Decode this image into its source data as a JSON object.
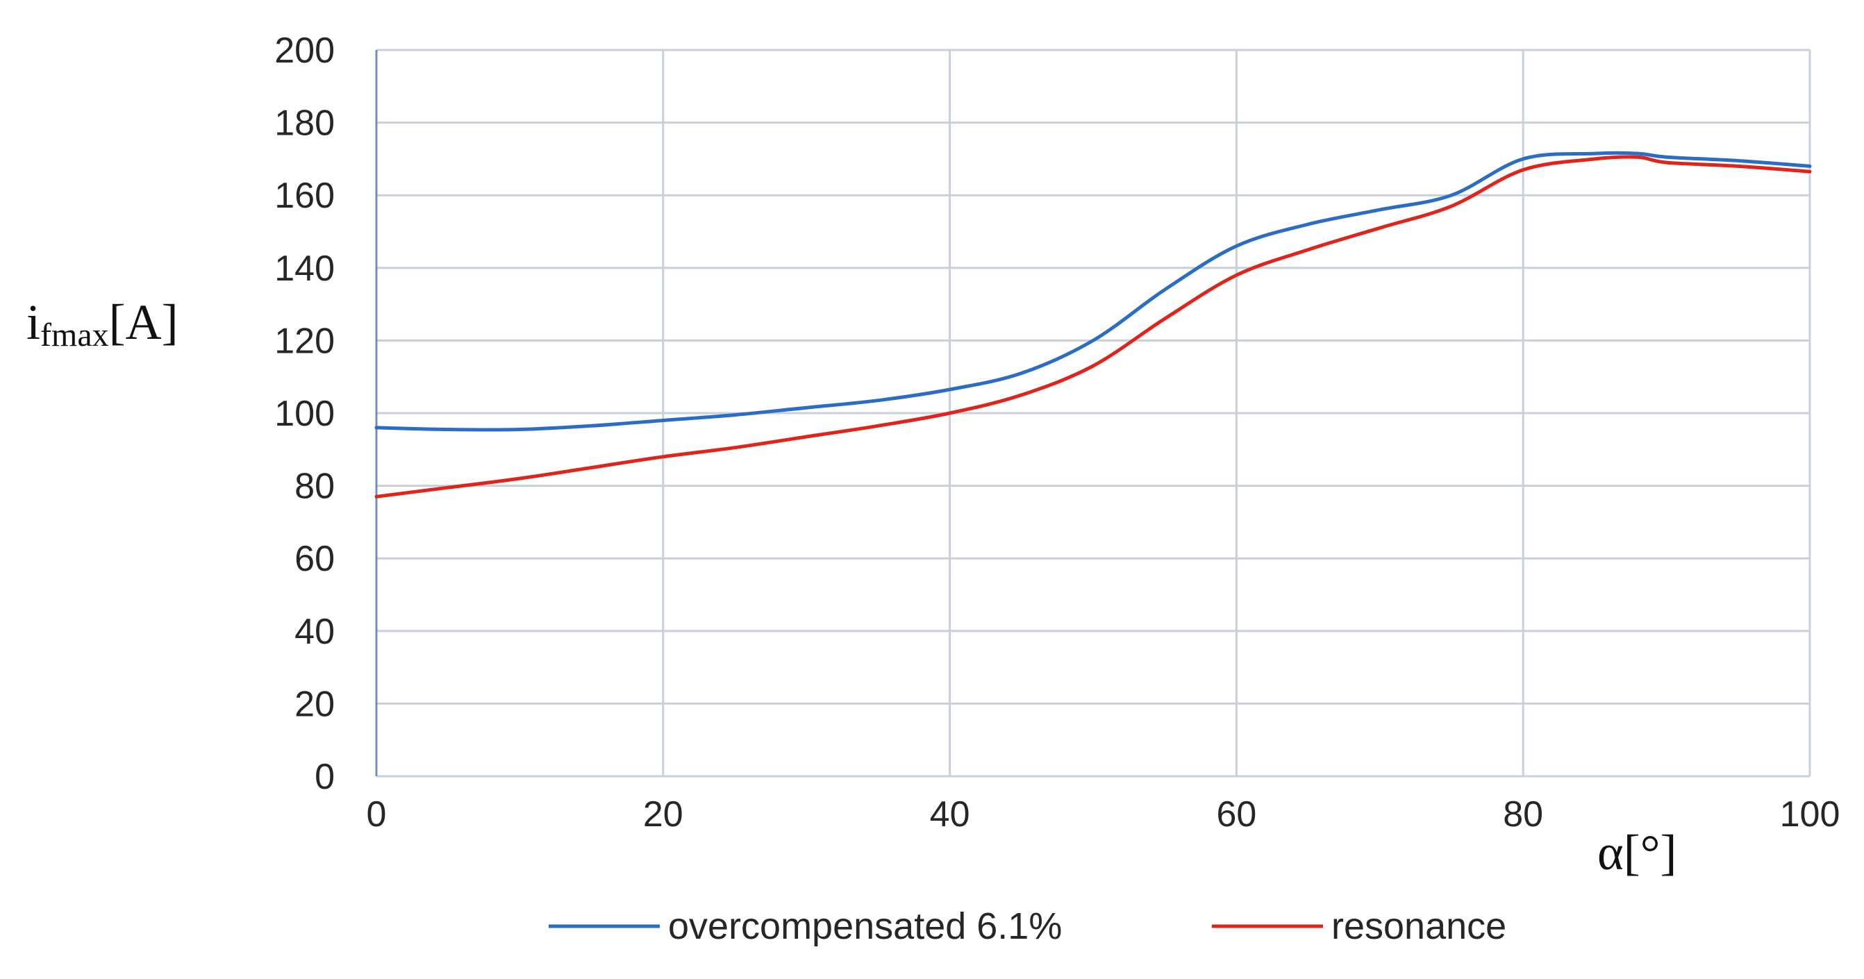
{
  "chart_data": {
    "type": "line",
    "ylabel": {
      "base": "i",
      "subscript": "fmax",
      "unit": "[A]"
    },
    "xlabel": "α[°]",
    "xlim": [
      0,
      100
    ],
    "ylim": [
      0,
      200
    ],
    "x_ticks": [
      0,
      20,
      40,
      60,
      80,
      100
    ],
    "y_ticks": [
      0,
      20,
      40,
      60,
      80,
      100,
      120,
      140,
      160,
      180,
      200
    ],
    "grid": true,
    "legend_position": "bottom",
    "series": [
      {
        "name": "overcompensated 6.1%",
        "color": "#2b6cc4",
        "points": [
          [
            0,
            96
          ],
          [
            5,
            95.5
          ],
          [
            10,
            95.5
          ],
          [
            15,
            96.5
          ],
          [
            20,
            98
          ],
          [
            25,
            99.5
          ],
          [
            30,
            101.5
          ],
          [
            35,
            103.5
          ],
          [
            40,
            106.5
          ],
          [
            45,
            111
          ],
          [
            50,
            120
          ],
          [
            55,
            134
          ],
          [
            60,
            146
          ],
          [
            65,
            152
          ],
          [
            70,
            156
          ],
          [
            75,
            160
          ],
          [
            80,
            170
          ],
          [
            85,
            171.5
          ],
          [
            88,
            171.5
          ],
          [
            90,
            170.5
          ],
          [
            95,
            169.5
          ],
          [
            100,
            168
          ]
        ]
      },
      {
        "name": "resonance",
        "color": "#e0241b",
        "points": [
          [
            0,
            77
          ],
          [
            5,
            79.5
          ],
          [
            10,
            82
          ],
          [
            15,
            85
          ],
          [
            20,
            88
          ],
          [
            25,
            90.5
          ],
          [
            30,
            93.5
          ],
          [
            35,
            96.5
          ],
          [
            40,
            100
          ],
          [
            45,
            105
          ],
          [
            50,
            113
          ],
          [
            55,
            126
          ],
          [
            60,
            138
          ],
          [
            65,
            145
          ],
          [
            70,
            151
          ],
          [
            75,
            157
          ],
          [
            80,
            167
          ],
          [
            85,
            170
          ],
          [
            88,
            170.5
          ],
          [
            90,
            169
          ],
          [
            95,
            168
          ],
          [
            100,
            166.5
          ]
        ]
      }
    ]
  }
}
